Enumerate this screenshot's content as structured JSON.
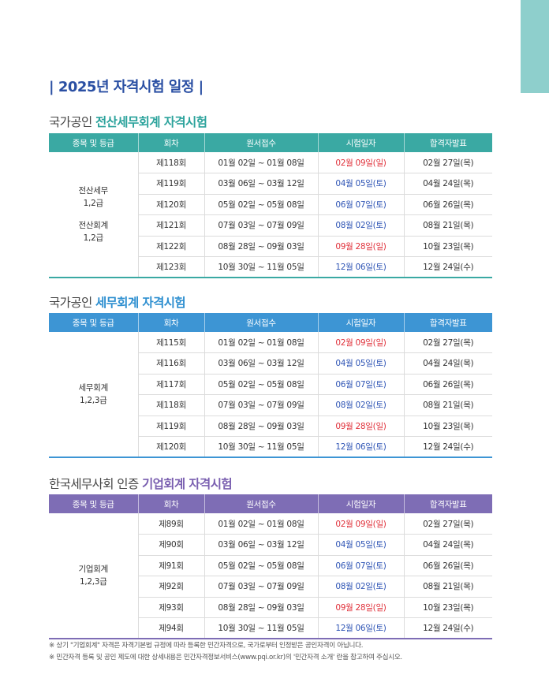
{
  "title": "| 2025년 자격시험 일정 |",
  "headers": [
    "종목 및 등급",
    "회차",
    "원서접수",
    "시험일자",
    "합격자발표"
  ],
  "sections": [
    {
      "prefix": "국가공인 ",
      "highlight": "전산세무회계 자격시험",
      "grade_lines": [
        "전산세무",
        "1,2급",
        "",
        "전산회계",
        "1,2급"
      ],
      "rows": [
        {
          "round": "제118회",
          "apply": "01월 02일 ~ 01월 08일",
          "exam": "02월 09일(일)",
          "result": "02월 27일(목)"
        },
        {
          "round": "제119회",
          "apply": "03월 06일 ~ 03월 12일",
          "exam": "04월 05일(토)",
          "result": "04월 24일(목)"
        },
        {
          "round": "제120회",
          "apply": "05월 02일 ~ 05월 08일",
          "exam": "06월 07일(토)",
          "result": "06월 26일(목)"
        },
        {
          "round": "제121회",
          "apply": "07월 03일 ~ 07월 09일",
          "exam": "08월 02일(토)",
          "result": "08월 21일(목)"
        },
        {
          "round": "제122회",
          "apply": "08월 28일 ~ 09월 03일",
          "exam": "09월 28일(일)",
          "result": "10월 23일(목)"
        },
        {
          "round": "제123회",
          "apply": "10월 30일 ~ 11월 05일",
          "exam": "12월 06일(토)",
          "result": "12월 24일(수)"
        }
      ]
    },
    {
      "prefix": "국가공인 ",
      "highlight": "세무회계 자격시험",
      "grade_lines": [
        "세무회계",
        "1,2,3급"
      ],
      "rows": [
        {
          "round": "제115회",
          "apply": "01월 02일 ~ 01월 08일",
          "exam": "02월 09일(일)",
          "result": "02월 27일(목)"
        },
        {
          "round": "제116회",
          "apply": "03월 06일 ~ 03월 12일",
          "exam": "04월 05일(토)",
          "result": "04월 24일(목)"
        },
        {
          "round": "제117회",
          "apply": "05월 02일 ~ 05월 08일",
          "exam": "06월 07일(토)",
          "result": "06월 26일(목)"
        },
        {
          "round": "제118회",
          "apply": "07월 03일 ~ 07월 09일",
          "exam": "08월 02일(토)",
          "result": "08월 21일(목)"
        },
        {
          "round": "제119회",
          "apply": "08월 28일 ~ 09월 03일",
          "exam": "09월 28일(일)",
          "result": "10월 23일(목)"
        },
        {
          "round": "제120회",
          "apply": "10월 30일 ~ 11월 05일",
          "exam": "12월 06일(토)",
          "result": "12월 24일(수)"
        }
      ]
    },
    {
      "prefix": "한국세무사회 인증 ",
      "highlight": "기업회계 자격시험",
      "grade_lines": [
        "기업회계",
        "1,2,3급"
      ],
      "rows": [
        {
          "round": "제89회",
          "apply": "01월 02일 ~ 01월 08일",
          "exam": "02월 09일(일)",
          "result": "02월 27일(목)"
        },
        {
          "round": "제90회",
          "apply": "03월 06일 ~ 03월 12일",
          "exam": "04월 05일(토)",
          "result": "04월 24일(목)"
        },
        {
          "round": "제91회",
          "apply": "05월 02일 ~ 05월 08일",
          "exam": "06월 07일(토)",
          "result": "06월 26일(목)"
        },
        {
          "round": "제92회",
          "apply": "07월 03일 ~ 07월 09일",
          "exam": "08월 02일(토)",
          "result": "08월 21일(목)"
        },
        {
          "round": "제93회",
          "apply": "08월 28일 ~ 09월 03일",
          "exam": "09월 28일(일)",
          "result": "10월 23일(목)"
        },
        {
          "round": "제94회",
          "apply": "10월 30일 ~ 11월 05일",
          "exam": "12월 06일(토)",
          "result": "12월 24일(수)"
        }
      ]
    }
  ],
  "exam_colors": {
    "sunday": "#e0303a",
    "saturday": "#2f55b5"
  },
  "accent_colors": [
    "#3aa9a3",
    "#3d95d4",
    "#7e6db5"
  ],
  "notes": [
    "※ 상기 \"기업회계\" 자격은 자격기본법 규정에 따라 등록한 민간자격으로, 국가로부터 인정받은 공인자격이 아닙니다.",
    "※ 민간자격 등록 및 공인 제도에 대한 상세내용은 민간자격정보서비스(www.pqi.or.kr)의 '민간자격 소개' 란을 참고하여 주십시오."
  ]
}
